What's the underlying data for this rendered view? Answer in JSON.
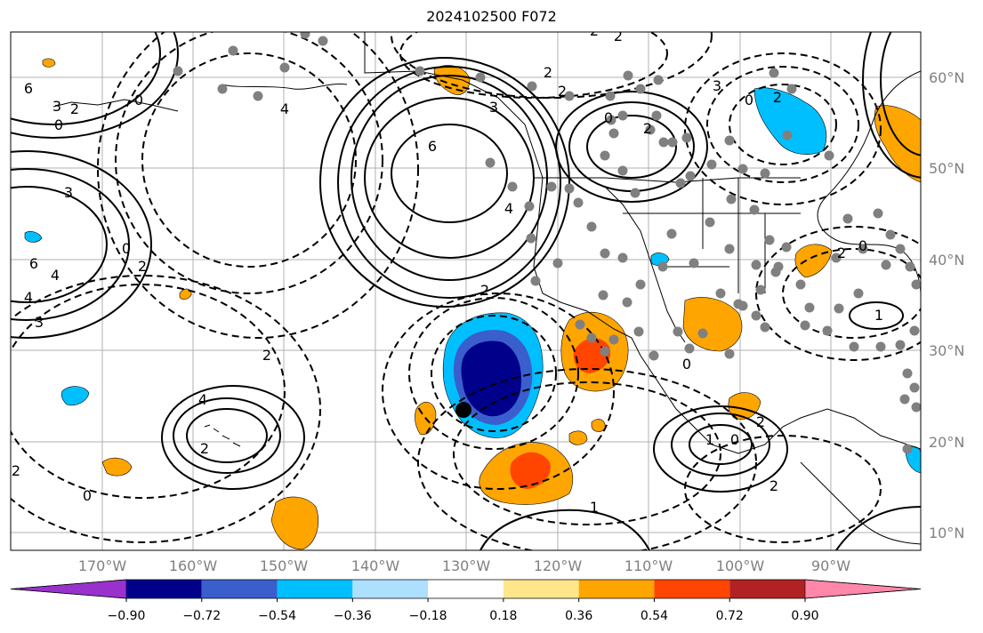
{
  "title": "2024102500 F072",
  "lat_labels": [
    "60°N",
    "50°N",
    "40°N",
    "30°N",
    "20°N",
    "10°N"
  ],
  "lon_labels": [
    "170°W",
    "160°W",
    "150°W",
    "140°W",
    "130°W",
    "120°W",
    "110°W",
    "100°W",
    "90°W"
  ],
  "colorbar": {
    "labels": [
      "−0.90",
      "−0.72",
      "−0.54",
      "−0.36",
      "−0.18",
      "0.18",
      "0.36",
      "0.54",
      "0.72",
      "0.90"
    ],
    "colors": [
      "#9932CC",
      "#00008B",
      "#3A5FCD",
      "#00BFFF",
      "#ADDFFF",
      "#FFFFFF",
      "#FFE68A",
      "#FFA500",
      "#FF4500",
      "#B22222",
      "#FF88AA"
    ]
  },
  "contour_labels": [
    "6",
    "3",
    "2",
    "0",
    "4",
    "0",
    "2",
    "3",
    "4",
    "2",
    "4",
    "6",
    "4",
    "3",
    "0",
    "2",
    "6",
    "4",
    "3",
    "2",
    "2",
    "2",
    "2",
    "0",
    "2",
    "3",
    "0",
    "2",
    "2",
    "0",
    "1",
    "0",
    "0",
    "2",
    "2",
    "1",
    "2",
    "0",
    "2",
    "1"
  ],
  "colors": {
    "axis_text": "#808080",
    "grid": "#b0b0b0"
  }
}
